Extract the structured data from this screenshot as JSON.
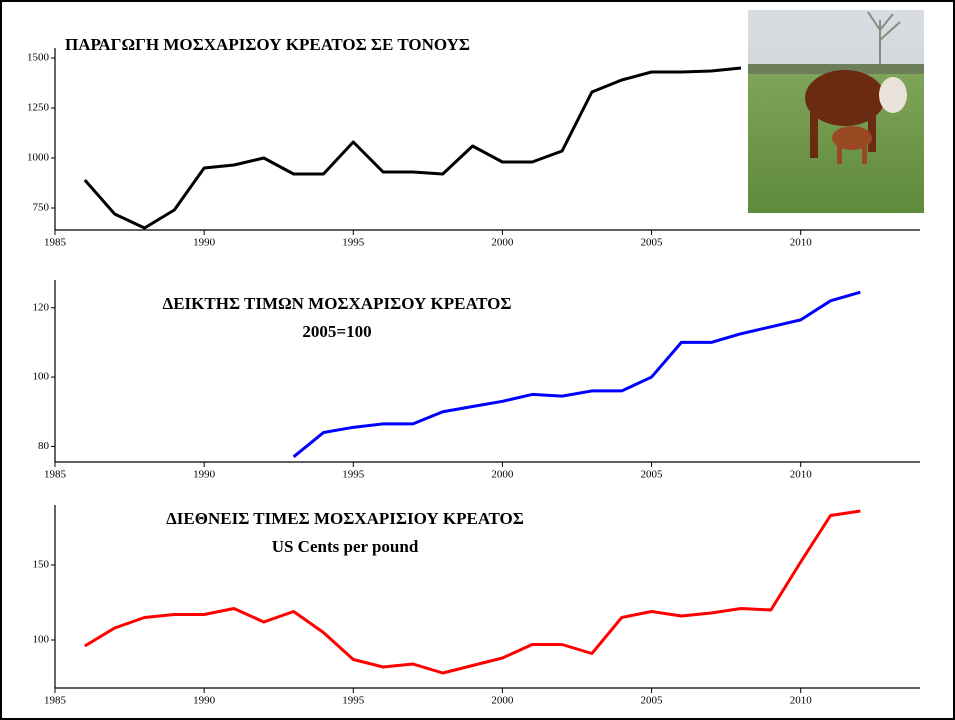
{
  "chart_data": [
    {
      "type": "line",
      "title": "ΠΑΡΑΓΩΓΗ ΜΟΣΧΑΡΙΣΟΥ ΚΡΕΑΤΟΣ ΣΕ ΤΟΝΟΥΣ",
      "x": [
        1986,
        1987,
        1988,
        1989,
        1990,
        1991,
        1992,
        1993,
        1994,
        1995,
        1996,
        1997,
        1998,
        1999,
        2000,
        2001,
        2002,
        2003,
        2004,
        2005,
        2006,
        2007,
        2008
      ],
      "series": [
        {
          "color": "#000000",
          "values": [
            890,
            720,
            650,
            740,
            950,
            965,
            1000,
            920,
            920,
            1080,
            930,
            930,
            920,
            1060,
            980,
            980,
            1035,
            1330,
            1390,
            1430,
            1430,
            1435,
            1450
          ]
        }
      ],
      "xlim": [
        1985,
        2014
      ],
      "xticks": [
        1985,
        1990,
        1995,
        2000,
        2005,
        2010
      ],
      "ylim": [
        640,
        1550
      ],
      "yticks": [
        750,
        1000,
        1250,
        1500
      ]
    },
    {
      "type": "line",
      "title": "ΔΕΙΚΤΗΣ ΤΙΜΩΝ ΜΟΣΧΑΡΙΣΟΥ ΚΡΕΑΤΟΣ",
      "subtitle": "2005=100",
      "x": [
        1993,
        1994,
        1995,
        1996,
        1997,
        1998,
        1999,
        2000,
        2001,
        2002,
        2003,
        2004,
        2005,
        2006,
        2007,
        2008,
        2009,
        2010,
        2011,
        2012
      ],
      "series": [
        {
          "color": "#0000ff",
          "values": [
            77,
            84,
            85.5,
            86.5,
            86.5,
            90,
            91.5,
            93,
            95,
            94.5,
            96,
            96,
            100,
            110,
            110,
            112.5,
            114.5,
            116.5,
            122,
            124.5
          ]
        }
      ],
      "xlim": [
        1985,
        2014
      ],
      "xticks": [
        1985,
        1990,
        1995,
        2000,
        2005,
        2010
      ],
      "ylim": [
        75.5,
        128
      ],
      "yticks": [
        80,
        100,
        120
      ]
    },
    {
      "type": "line",
      "title": "ΔΙΕΘΝΕΙΣ ΤΙΜΕΣ ΜΟΣΧΑΡΙΣΙΟΥ ΚΡΕΑΤΟΣ",
      "subtitle": "US Cents per pound",
      "x": [
        1986,
        1987,
        1988,
        1989,
        1990,
        1991,
        1992,
        1993,
        1994,
        1995,
        1996,
        1997,
        1998,
        1999,
        2000,
        2001,
        2002,
        2003,
        2004,
        2005,
        2006,
        2007,
        2008,
        2009,
        2010,
        2011,
        2012
      ],
      "series": [
        {
          "color": "#ff0000",
          "values": [
            96,
            108,
            115,
            117,
            117,
            121,
            112,
            119,
            105,
            87,
            82,
            84,
            78,
            83,
            88,
            97,
            97,
            91,
            115,
            119,
            116,
            118,
            121,
            120,
            152,
            183,
            186
          ]
        }
      ],
      "xlim": [
        1985,
        2014
      ],
      "xticks": [
        1985,
        1990,
        1995,
        2000,
        2005,
        2010
      ],
      "ylim": [
        68,
        190
      ],
      "yticks": [
        100,
        150
      ]
    }
  ]
}
